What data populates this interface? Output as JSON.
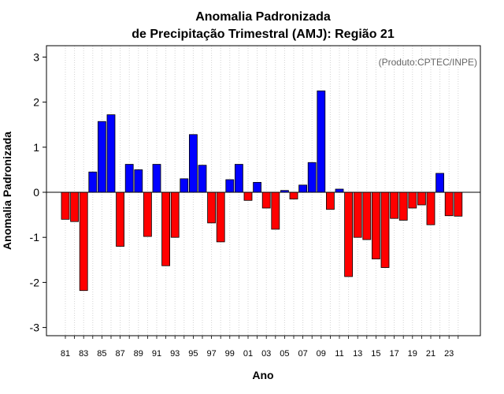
{
  "chart_data": {
    "type": "bar",
    "title_line1": "Anomalia Padronizada",
    "title_line2": "de Precipitação Trimestral (AMJ): Região 21",
    "xlabel": "Ano",
    "ylabel": "Anomalia Padronizada",
    "credit": "(Produto:CPTEC/INPE)",
    "ylim": [
      -3.15,
      3.25
    ],
    "yticks": [
      -3,
      -2,
      -1,
      0,
      1,
      2,
      3
    ],
    "ytick_labels": [
      "-3",
      "-2",
      "-1",
      "0",
      "1",
      "2",
      "3"
    ],
    "categories": [
      "81",
      "82",
      "83",
      "84",
      "85",
      "86",
      "87",
      "88",
      "89",
      "90",
      "91",
      "92",
      "93",
      "94",
      "95",
      "96",
      "97",
      "98",
      "99",
      "00",
      "01",
      "02",
      "03",
      "04",
      "05",
      "06",
      "07",
      "08",
      "09",
      "10",
      "11",
      "12",
      "13",
      "14",
      "15",
      "16",
      "17",
      "18",
      "19",
      "20",
      "21",
      "22",
      "23",
      "24"
    ],
    "xtick_labels": [
      "81",
      "83",
      "85",
      "87",
      "89",
      "91",
      "93",
      "95",
      "97",
      "99",
      "01",
      "03",
      "05",
      "07",
      "09",
      "11",
      "13",
      "15",
      "17",
      "19",
      "21",
      "23"
    ],
    "values": [
      -0.6,
      -0.65,
      -2.18,
      0.45,
      1.57,
      1.72,
      -1.2,
      0.62,
      0.5,
      -0.98,
      0.62,
      -1.63,
      -1.0,
      0.3,
      1.28,
      0.6,
      -0.68,
      -1.1,
      0.28,
      0.62,
      -0.18,
      0.22,
      -0.35,
      -0.82,
      0.04,
      -0.15,
      0.16,
      0.66,
      2.25,
      -0.38,
      0.07,
      -1.87,
      -1.0,
      -1.05,
      -1.48,
      -1.67,
      -0.58,
      -0.62,
      -0.35,
      -0.28,
      -0.72,
      0.42,
      -0.52,
      -0.53
    ],
    "colors": {
      "positive": "#0000ff",
      "negative": "#ff0000",
      "grid": "#d3d3d3",
      "axis": "#000000"
    }
  }
}
